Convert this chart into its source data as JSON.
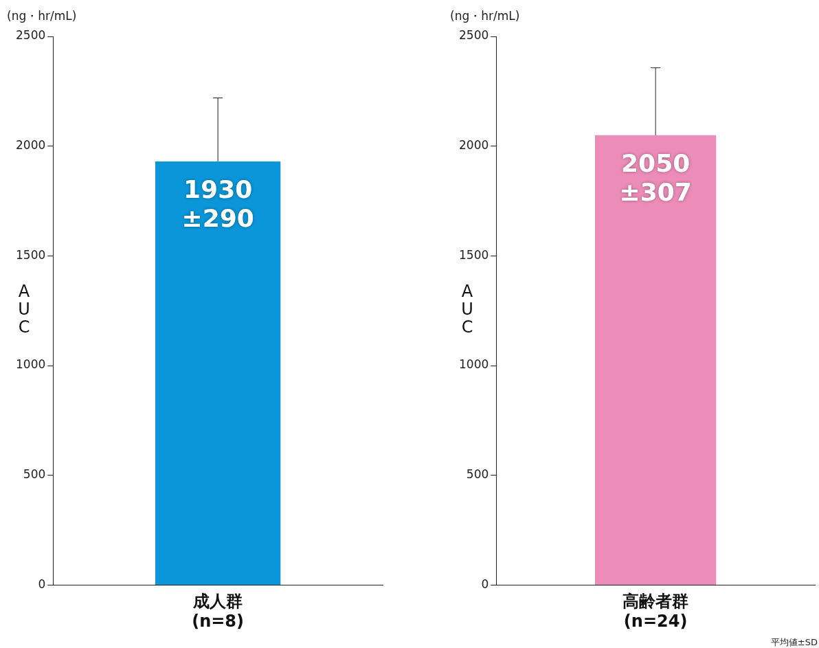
{
  "chart_data": [
    {
      "type": "bar",
      "ylabel": "AUC",
      "annotations": [
        "(ng・hr/mL)"
      ],
      "categories": [
        "成人群\n(n=8)"
      ],
      "values": [
        1930
      ],
      "errors": [
        290
      ],
      "value_labels": [
        "1930\n±290"
      ],
      "color": "#0a96d8",
      "ylim": [
        0,
        2500
      ],
      "yticks": [
        0,
        500,
        1000,
        1500,
        2000,
        2500
      ],
      "grid": false,
      "legend": false
    },
    {
      "type": "bar",
      "ylabel": "AUC",
      "annotations": [
        "(ng・hr/mL)",
        "平均値±SD"
      ],
      "categories": [
        "高齢者群\n(n=24)"
      ],
      "values": [
        2050
      ],
      "errors": [
        307
      ],
      "value_labels": [
        "2050\n±307"
      ],
      "color": "#ec8cb8",
      "ylim": [
        0,
        2500
      ],
      "yticks": [
        0,
        500,
        1000,
        1500,
        2000,
        2500
      ],
      "grid": false,
      "legend": false
    }
  ]
}
